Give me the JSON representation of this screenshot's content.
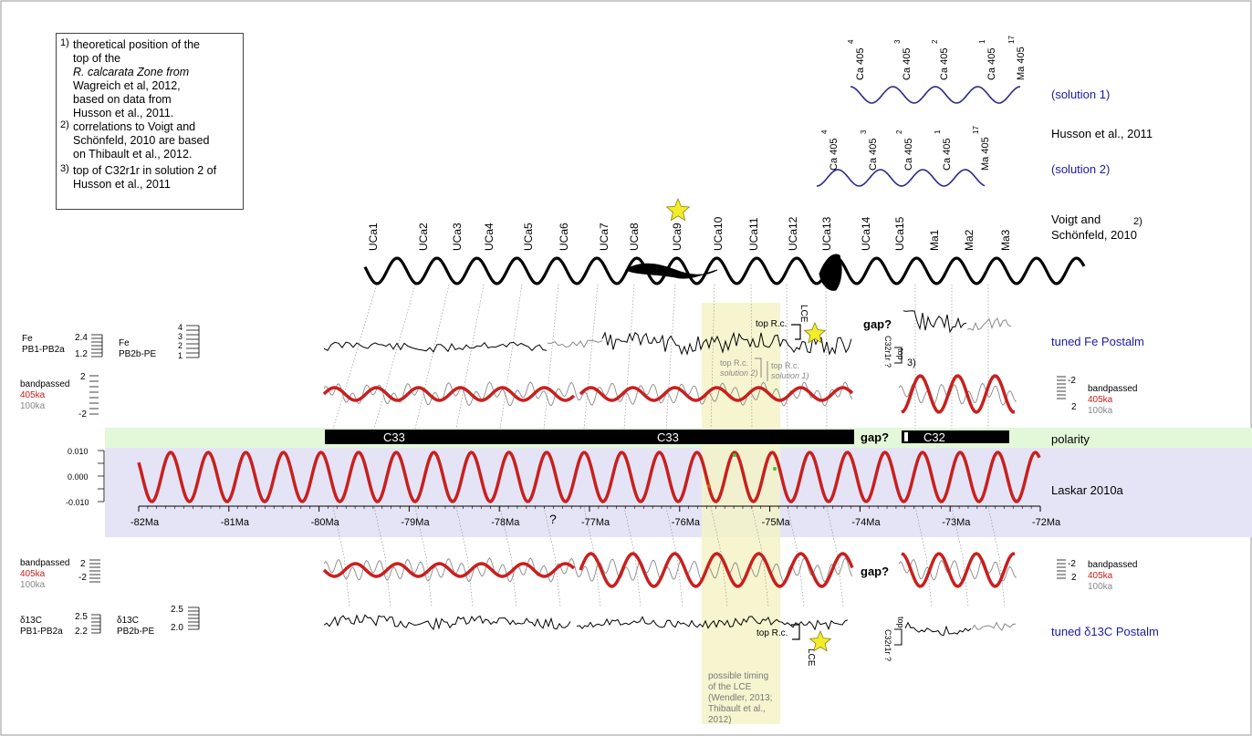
{
  "notes": [
    {
      "num": "1)",
      "lines": [
        "theoretical position of the",
        "top of the",
        "R. calcarata Zone from",
        "Wagreich et al, 2012,",
        "based on data from",
        "Husson et al., 2011."
      ]
    },
    {
      "num": "2)",
      "lines": [
        "correlations to Voigt and",
        "Schönfeld, 2010 are based",
        "on Thibault et al., 2012."
      ]
    },
    {
      "num": "3)",
      "lines": [
        "top of C32r1r in solution 2 of",
        "Husson et al., 2011"
      ]
    }
  ],
  "husson": {
    "title": "Husson et al., 2011",
    "solution1": {
      "label": "(solution 1)",
      "cycles": [
        "Ca 405",
        "Ca 405",
        "Ca 405",
        "Ca 405",
        "Ma 405"
      ],
      "supers": [
        "4",
        "3",
        "2",
        "1",
        "17"
      ]
    },
    "solution2": {
      "label": "(solution 2)",
      "cycles": [
        "Ca 405",
        "Ca 405",
        "Ca 405",
        "Ca 405",
        "Ma 405"
      ],
      "supers": [
        "4",
        "3",
        "2",
        "1",
        "17"
      ]
    }
  },
  "voigt": {
    "title_line1": "Voigt and",
    "title_line2": "Schönfeld, 2010",
    "note_ref": "2)",
    "cycles": [
      "UCa1",
      "UCa2",
      "UCa3",
      "UCa4",
      "UCa5",
      "UCa6",
      "UCa7",
      "UCa8",
      "UCa9",
      "UCa10",
      "UCa11",
      "UCa12",
      "UCa13",
      "UCa14",
      "UCa15",
      "Ma1",
      "Ma2",
      "Ma3"
    ]
  },
  "fe": {
    "title": "tuned Fe Postalm",
    "left_label1": "Fe",
    "left_label2": "PB1-PB2a",
    "left_ticks": [
      "2.4",
      "1.2"
    ],
    "mid_label1": "Fe",
    "mid_label2": "PB2b-PE",
    "mid_ticks": [
      "4",
      "3",
      "2",
      "1"
    ],
    "top_rc": "top R.c.",
    "lce": "LCE",
    "gap": "gap?",
    "top_rc_sol2": "top R.c.",
    "sol2": "solution 2)",
    "top_rc_sol1": "top R.c.",
    "sol1": "solution 1)",
    "c32_label": "C32r1r ?",
    "top": "top",
    "ref3": "3)"
  },
  "bandpass_upper": {
    "label": "bandpassed",
    "label405": "405ka",
    "label100": "100ka",
    "ticks": [
      "2",
      "-2"
    ],
    "right_ticks": [
      "-2",
      "2"
    ]
  },
  "polarity": {
    "label": "polarity",
    "chrons": [
      "C33",
      "C33",
      "C32"
    ],
    "gap": "gap?"
  },
  "laskar": {
    "label": "Laskar 2010a",
    "yticks": [
      "0.010",
      "0.000",
      "-0.010"
    ],
    "xticks": [
      "-82Ma",
      "-81Ma",
      "-80Ma",
      "-79Ma",
      "-78Ma",
      "-77Ma",
      "-76Ma",
      "-75Ma",
      "-74Ma",
      "-73Ma",
      "-72Ma"
    ],
    "question": "?"
  },
  "bandpass_lower": {
    "label": "bandpassed",
    "label405": "405ka",
    "label100": "100ka",
    "ticks": [
      "2",
      "-2"
    ],
    "right_ticks": [
      "-2",
      "2"
    ],
    "gap": "gap?"
  },
  "d13c": {
    "title": "tuned δ13C Postalm",
    "left_label1": "δ13C",
    "left_label2": "PB1-PB2a",
    "left_ticks": [
      "2.5",
      "2.2"
    ],
    "mid_label1": "δ13C",
    "mid_label2": "PB2b-PE",
    "mid_ticks": [
      "2.5",
      "2.0"
    ],
    "top_rc": "top R.c.",
    "lce": "LCE",
    "c32_label": "C32r1r ?",
    "top": "top"
  },
  "lce_zone": {
    "lines": [
      "possible timing",
      "of the LCE",
      "(Wendler, 2013;",
      "Thibault et al.,",
      "2012)"
    ]
  },
  "colors": {
    "red": "#c8201e",
    "blue": "#1a1aa8",
    "navy": "#2a2a8a",
    "green_band": "#e2f8d8",
    "blue_band": "#e4e4f6",
    "lce_band": "#f5f3c8",
    "star": "#f3ec2a"
  }
}
